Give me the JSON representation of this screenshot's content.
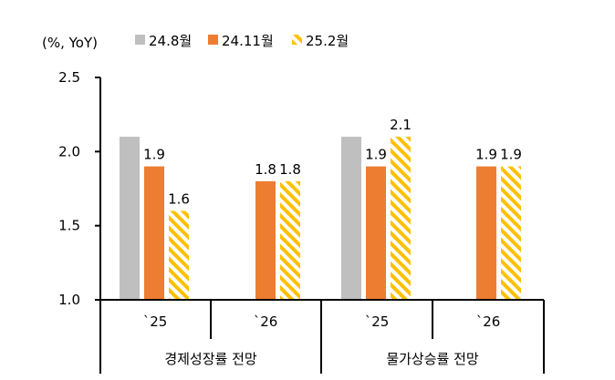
{
  "chart_data": {
    "type": "bar",
    "unit_label": "(%, YoY)",
    "ylim": [
      1.0,
      2.5
    ],
    "yticks": [
      "1.0",
      "1.5",
      "2.0",
      "2.5"
    ],
    "categories": [
      "`25",
      "`26",
      "`25",
      "`26"
    ],
    "groups": [
      "경제성장률 전망",
      "물가상승률 전망"
    ],
    "series": [
      {
        "name": "24.8월",
        "color": "#bfbfbf",
        "pattern": "solid",
        "values": [
          2.1,
          null,
          2.1,
          null
        ],
        "labels": [
          "",
          "",
          "",
          ""
        ]
      },
      {
        "name": "24.11월",
        "color": "#ed7d31",
        "pattern": "solid",
        "values": [
          1.9,
          1.8,
          1.9,
          1.9
        ],
        "labels": [
          "1.9",
          "1.8",
          "1.9",
          "1.9"
        ]
      },
      {
        "name": "25.2월",
        "color": "#ffc000",
        "pattern": "hatched",
        "values": [
          1.6,
          1.8,
          2.1,
          1.9
        ],
        "labels": [
          "1.6",
          "1.8",
          "2.1",
          "1.9"
        ]
      }
    ],
    "grid": false,
    "legend_position": "top"
  }
}
